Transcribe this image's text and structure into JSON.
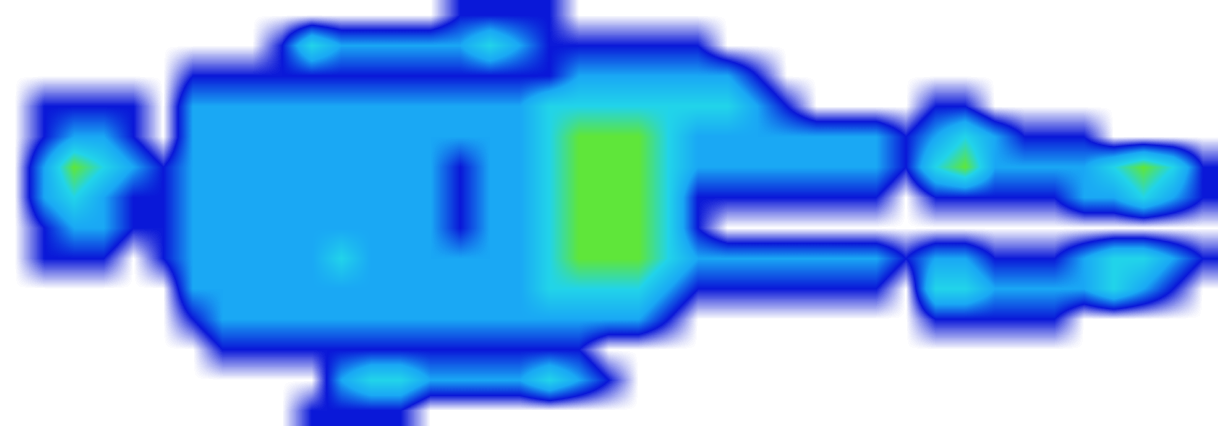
{
  "chart_data": {
    "type": "heatmap",
    "tick_labels": false,
    "cells": [
      [
        0,
        0,
        0,
        0,
        0,
        0,
        0,
        0,
        0,
        0,
        0,
        0,
        0,
        0,
        0,
        1,
        1,
        1,
        1,
        0,
        0,
        0,
        0,
        0,
        0,
        0,
        0,
        0,
        0,
        0,
        0,
        0,
        0,
        0,
        0,
        0,
        0,
        0,
        0,
        0,
        0
      ],
      [
        0,
        0,
        0,
        0,
        0,
        0,
        0,
        0,
        0,
        1,
        3,
        2,
        2,
        2,
        2,
        2,
        3,
        2,
        1,
        1,
        1,
        1,
        1,
        1,
        0,
        0,
        0,
        0,
        0,
        0,
        0,
        0,
        0,
        0,
        0,
        0,
        0,
        0,
        0,
        0,
        0
      ],
      [
        0,
        0,
        0,
        0,
        0,
        0,
        1,
        1,
        1,
        1,
        1,
        1,
        1,
        1,
        1,
        1,
        1,
        1,
        1,
        2,
        2,
        2,
        2,
        2,
        2,
        1,
        0,
        0,
        0,
        0,
        0,
        0,
        0,
        0,
        0,
        0,
        0,
        0,
        0,
        0,
        0
      ],
      [
        0,
        1,
        1,
        1,
        1,
        0,
        2,
        2,
        2,
        2,
        2,
        2,
        2,
        2,
        2,
        2,
        2,
        2,
        3,
        3,
        3,
        3,
        3,
        3,
        3,
        2,
        1,
        0,
        0,
        0,
        0,
        1,
        1,
        0,
        0,
        0,
        0,
        0,
        0,
        0,
        0
      ],
      [
        0,
        1,
        2,
        2,
        1,
        0,
        2,
        2,
        2,
        2,
        2,
        2,
        2,
        2,
        2,
        2,
        2,
        2,
        3,
        4,
        4,
        4,
        3,
        2,
        2,
        2,
        2,
        2,
        2,
        2,
        1,
        2,
        3,
        2,
        1,
        1,
        1,
        0,
        0,
        0,
        0
      ],
      [
        0,
        2,
        4,
        3,
        2,
        1,
        2,
        2,
        2,
        2,
        2,
        2,
        2,
        2,
        2,
        1,
        2,
        2,
        3,
        4,
        4,
        4,
        3,
        2,
        2,
        2,
        2,
        2,
        2,
        2,
        1,
        3,
        4,
        2,
        2,
        2,
        2,
        3,
        4,
        3,
        1
      ],
      [
        0,
        2,
        3,
        2,
        1,
        1,
        2,
        2,
        2,
        2,
        2,
        2,
        2,
        2,
        2,
        1,
        2,
        2,
        3,
        4,
        4,
        4,
        3,
        1,
        1,
        1,
        1,
        1,
        1,
        1,
        0,
        1,
        1,
        1,
        1,
        1,
        2,
        2,
        3,
        2,
        1
      ],
      [
        0,
        1,
        2,
        2,
        1,
        1,
        2,
        2,
        2,
        2,
        2,
        2,
        2,
        2,
        2,
        1,
        2,
        2,
        3,
        4,
        4,
        4,
        3,
        1,
        0,
        0,
        0,
        0,
        0,
        0,
        0,
        0,
        0,
        0,
        0,
        0,
        0,
        0,
        0,
        0,
        0
      ],
      [
        0,
        1,
        1,
        1,
        0,
        1,
        2,
        2,
        2,
        2,
        2,
        3,
        2,
        2,
        2,
        2,
        2,
        2,
        3,
        4,
        4,
        4,
        3,
        2,
        2,
        2,
        2,
        2,
        2,
        2,
        1,
        2,
        2,
        1,
        1,
        1,
        2,
        3,
        3,
        2,
        1
      ],
      [
        0,
        0,
        0,
        0,
        0,
        0,
        2,
        2,
        2,
        2,
        2,
        2,
        2,
        2,
        2,
        2,
        2,
        2,
        3,
        3,
        3,
        3,
        2,
        1,
        1,
        1,
        1,
        1,
        1,
        1,
        0,
        3,
        3,
        2,
        2,
        2,
        2,
        3,
        2,
        1,
        0
      ],
      [
        0,
        0,
        0,
        0,
        0,
        0,
        1,
        2,
        2,
        2,
        2,
        2,
        2,
        2,
        2,
        2,
        2,
        2,
        2,
        2,
        2,
        2,
        1,
        0,
        0,
        0,
        0,
        0,
        0,
        0,
        0,
        1,
        1,
        1,
        1,
        1,
        0,
        0,
        0,
        0,
        0
      ],
      [
        0,
        0,
        0,
        0,
        0,
        0,
        0,
        1,
        1,
        1,
        1,
        1,
        1,
        1,
        1,
        1,
        1,
        1,
        1,
        1,
        0,
        0,
        0,
        0,
        0,
        0,
        0,
        0,
        0,
        0,
        0,
        0,
        0,
        0,
        0,
        0,
        0,
        0,
        0,
        0,
        0
      ],
      [
        0,
        0,
        0,
        0,
        0,
        0,
        0,
        0,
        0,
        0,
        0,
        2,
        3,
        3,
        2,
        2,
        2,
        2,
        3,
        2,
        1,
        0,
        0,
        0,
        0,
        0,
        0,
        0,
        0,
        0,
        0,
        0,
        0,
        0,
        0,
        0,
        0,
        0,
        0,
        0,
        0
      ],
      [
        0,
        0,
        0,
        0,
        0,
        0,
        0,
        0,
        0,
        0,
        1,
        1,
        1,
        1,
        0,
        0,
        0,
        0,
        0,
        0,
        0,
        0,
        0,
        0,
        0,
        0,
        0,
        0,
        0,
        0,
        0,
        0,
        0,
        0,
        0,
        0,
        0,
        0,
        0,
        0,
        0
      ]
    ]
  }
}
